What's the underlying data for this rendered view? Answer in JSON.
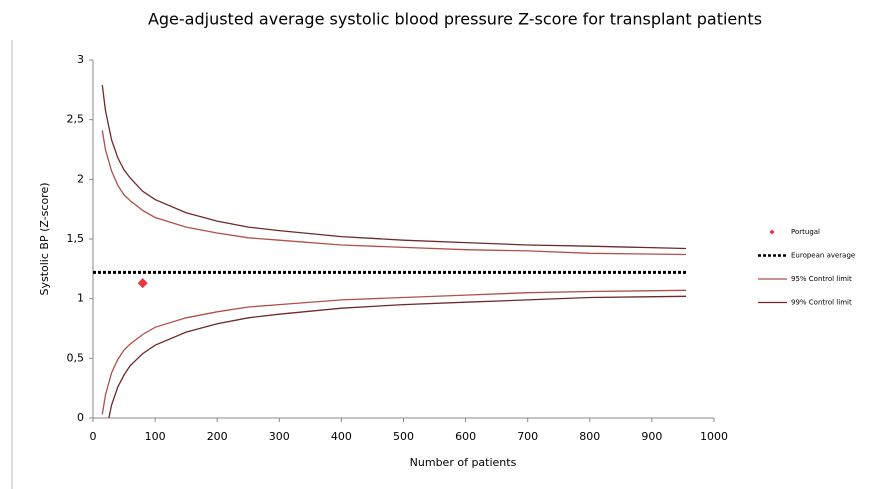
{
  "chart_data": {
    "type": "funnel",
    "title": "Age-adjusted average systolic blood pressure Z-score for transplant patients",
    "x_label": "Number of patients",
    "y_label": "Systolic BP (Z-score)",
    "xlim": [
      0,
      1000
    ],
    "ylim": [
      0,
      3
    ],
    "xticks": [
      0,
      100,
      200,
      300,
      400,
      500,
      600,
      700,
      800,
      900,
      1000
    ],
    "yticks": [
      0,
      {
        "value": 0.5,
        "label": "0,5"
      },
      1,
      {
        "value": 1.5,
        "label": "1,5"
      },
      2,
      {
        "value": 2.5,
        "label": "2,5"
      },
      3
    ],
    "grid": false,
    "legend": "right",
    "series": [
      {
        "name": "Portugal",
        "type": "scatter",
        "color": "#e8383d",
        "x": [
          80
        ],
        "values": [
          1.13
        ]
      },
      {
        "name": "European average",
        "type": "dotted",
        "color": "#000000",
        "x": [
          0,
          955
        ],
        "values": [
          1.22,
          1.22
        ]
      },
      {
        "name": "95% Control limit",
        "type": "limit",
        "color": "#b0504a",
        "x": [
          15,
          20,
          30,
          40,
          50,
          60,
          80,
          100,
          150,
          200,
          250,
          300,
          400,
          500,
          600,
          700,
          800,
          955
        ],
        "upper": [
          2.41,
          2.25,
          2.07,
          1.95,
          1.87,
          1.82,
          1.74,
          1.68,
          1.6,
          1.55,
          1.51,
          1.49,
          1.45,
          1.43,
          1.41,
          1.4,
          1.38,
          1.37
        ],
        "lower": [
          0.03,
          0.19,
          0.38,
          0.49,
          0.57,
          0.62,
          0.7,
          0.76,
          0.84,
          0.89,
          0.93,
          0.95,
          0.99,
          1.01,
          1.03,
          1.05,
          1.06,
          1.07
        ]
      },
      {
        "name": "99% Control limit",
        "type": "limit",
        "color": "#6e2a2a",
        "x": [
          15,
          20,
          30,
          40,
          50,
          60,
          80,
          100,
          150,
          200,
          250,
          300,
          400,
          500,
          600,
          700,
          800,
          955
        ],
        "upper": [
          2.79,
          2.58,
          2.33,
          2.18,
          2.08,
          2.01,
          1.9,
          1.83,
          1.72,
          1.65,
          1.6,
          1.57,
          1.52,
          1.49,
          1.47,
          1.45,
          1.44,
          1.42
        ],
        "lower": [
          -0.35,
          -0.14,
          0.11,
          0.26,
          0.36,
          0.44,
          0.54,
          0.61,
          0.72,
          0.79,
          0.84,
          0.87,
          0.92,
          0.95,
          0.97,
          0.99,
          1.01,
          1.02
        ]
      }
    ]
  }
}
